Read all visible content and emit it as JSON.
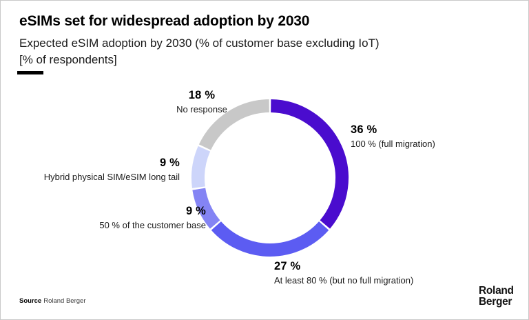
{
  "header": {
    "title": "eSIMs set for widespread adoption by 2030",
    "subtitle_line1": "Expected eSIM adoption by 2030 (% of customer base excluding IoT)",
    "subtitle_line2": "[% of respondents]"
  },
  "chart_data": {
    "type": "pie",
    "subtype": "donut",
    "title": "Expected eSIM adoption by 2030 (% of customer base excluding IoT)",
    "unit": "% of respondents",
    "start_angle_deg": 0,
    "clockwise": true,
    "legend_position": "around",
    "total": 100,
    "segments": [
      {
        "label": "100 % (full migration)",
        "value": 36,
        "pct_label": "36 %",
        "color": "#4A0CCE"
      },
      {
        "label": "At least 80 % (but no full migration)",
        "value": 27,
        "pct_label": "27 %",
        "color": "#5C5CF2"
      },
      {
        "label": "50 % of the customer base",
        "value": 9,
        "pct_label": "9 %",
        "color": "#8484F4"
      },
      {
        "label": "Hybrid physical SIM/eSIM long tail",
        "value": 9,
        "pct_label": "9 %",
        "color": "#CDD5FA"
      },
      {
        "label": "No response",
        "value": 18,
        "pct_label": "18 %",
        "color": "#C8C8C8"
      }
    ]
  },
  "footer": {
    "source_label": "Source",
    "source_value": "Roland Berger",
    "logo_line1": "Roland",
    "logo_line2": "Berger"
  }
}
